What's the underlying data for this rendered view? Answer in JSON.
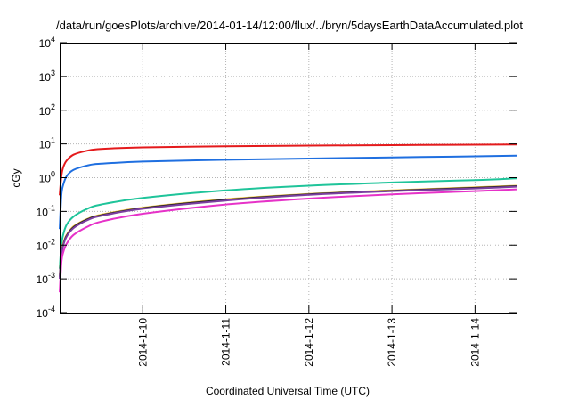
{
  "chart_data": {
    "type": "line",
    "title": "/data/run/goesPlots/archive/2014-01-14/12:00/flux/../bryn/5daysEarthDataAccumulated.plot",
    "xlabel": "Coordinated Universal Time (UTC)",
    "ylabel": "cGy",
    "y_scale": "log",
    "ylim_exponents": [
      -4,
      4
    ],
    "y_ticks": [
      {
        "base": "10",
        "exp": "-4"
      },
      {
        "base": "10",
        "exp": "-3"
      },
      {
        "base": "10",
        "exp": "-2"
      },
      {
        "base": "10",
        "exp": "-1"
      },
      {
        "base": "10",
        "exp": "0"
      },
      {
        "base": "10",
        "exp": "1"
      },
      {
        "base": "10",
        "exp": "2"
      },
      {
        "base": "10",
        "exp": "3"
      },
      {
        "base": "10",
        "exp": "4"
      }
    ],
    "x_start": "2014-01-09 00:00",
    "x_end": "2014-01-14 12:00",
    "x_ticks": [
      {
        "label": "2014-1-10",
        "date": "2014-01-10"
      },
      {
        "label": "2014-1-11",
        "date": "2014-01-11"
      },
      {
        "label": "2014-1-12",
        "date": "2014-01-12"
      },
      {
        "label": "2014-1-13",
        "date": "2014-01-13"
      },
      {
        "label": "2014-1-14",
        "date": "2014-01-14"
      }
    ],
    "grid": true,
    "legend": "none",
    "series": [
      {
        "color": "#e41a1c",
        "width": 2,
        "x": [
          "2014-01-09 00:00",
          "2014-01-09 00:30",
          "2014-01-09 01:00",
          "2014-01-09 02:00",
          "2014-01-09 04:00",
          "2014-01-09 08:00",
          "2014-01-09 12:00",
          "2014-01-10 00:00",
          "2014-01-11 00:00",
          "2014-01-12 00:00",
          "2014-01-13 00:00",
          "2014-01-14 00:00",
          "2014-01-14 12:00"
        ],
        "y": [
          0.3,
          1.1,
          2.0,
          3.2,
          4.8,
          6.3,
          7.1,
          7.9,
          8.5,
          8.9,
          9.2,
          9.5,
          9.6
        ]
      },
      {
        "color": "#1f6fe0",
        "width": 2,
        "x": [
          "2014-01-09 00:00",
          "2014-01-09 00:30",
          "2014-01-09 01:00",
          "2014-01-09 02:00",
          "2014-01-09 04:00",
          "2014-01-09 08:00",
          "2014-01-09 12:00",
          "2014-01-10 00:00",
          "2014-01-11 00:00",
          "2014-01-12 00:00",
          "2014-01-13 00:00",
          "2014-01-14 00:00",
          "2014-01-14 12:00"
        ],
        "y": [
          0.03,
          0.3,
          0.6,
          1.1,
          1.7,
          2.3,
          2.6,
          3.0,
          3.4,
          3.7,
          4.0,
          4.3,
          4.5
        ]
      },
      {
        "color": "#1fc49a",
        "width": 2,
        "x": [
          "2014-01-09 00:00",
          "2014-01-09 00:30",
          "2014-01-09 01:00",
          "2014-01-09 02:00",
          "2014-01-09 04:00",
          "2014-01-09 08:00",
          "2014-01-09 12:00",
          "2014-01-10 00:00",
          "2014-01-11 00:00",
          "2014-01-12 00:00",
          "2014-01-13 00:00",
          "2014-01-14 00:00",
          "2014-01-14 12:00"
        ],
        "y": [
          0.002,
          0.01,
          0.02,
          0.04,
          0.07,
          0.12,
          0.16,
          0.25,
          0.42,
          0.58,
          0.72,
          0.85,
          0.95
        ]
      },
      {
        "color": "#f7c948",
        "width": 2,
        "x": [
          "2014-01-09 00:00",
          "2014-01-09 00:30",
          "2014-01-09 01:00",
          "2014-01-09 02:00",
          "2014-01-09 04:00",
          "2014-01-09 08:00",
          "2014-01-09 12:00",
          "2014-01-10 00:00",
          "2014-01-11 00:00",
          "2014-01-12 00:00",
          "2014-01-13 00:00",
          "2014-01-14 00:00",
          "2014-01-14 12:00"
        ],
        "y": [
          0.0012,
          0.006,
          0.011,
          0.02,
          0.036,
          0.06,
          0.08,
          0.13,
          0.23,
          0.33,
          0.42,
          0.52,
          0.58
        ]
      },
      {
        "color": "#222222",
        "width": 2,
        "x": [
          "2014-01-09 00:00",
          "2014-01-09 00:30",
          "2014-01-09 01:00",
          "2014-01-09 02:00",
          "2014-01-09 04:00",
          "2014-01-09 08:00",
          "2014-01-09 12:00",
          "2014-01-10 00:00",
          "2014-01-11 00:00",
          "2014-01-12 00:00",
          "2014-01-13 00:00",
          "2014-01-14 00:00",
          "2014-01-14 12:00"
        ],
        "y": [
          0.0011,
          0.0055,
          0.01,
          0.019,
          0.034,
          0.058,
          0.077,
          0.125,
          0.22,
          0.32,
          0.41,
          0.5,
          0.56
        ]
      },
      {
        "color": "#7b3fa0",
        "width": 2,
        "x": [
          "2014-01-09 00:00",
          "2014-01-09 00:30",
          "2014-01-09 01:00",
          "2014-01-09 02:00",
          "2014-01-09 04:00",
          "2014-01-09 08:00",
          "2014-01-09 12:00",
          "2014-01-10 00:00",
          "2014-01-11 00:00",
          "2014-01-12 00:00",
          "2014-01-13 00:00",
          "2014-01-14 00:00",
          "2014-01-14 12:00"
        ],
        "y": [
          0.001,
          0.005,
          0.0095,
          0.018,
          0.032,
          0.055,
          0.074,
          0.12,
          0.21,
          0.31,
          0.4,
          0.48,
          0.54
        ]
      },
      {
        "color": "#e632c8",
        "width": 2,
        "x": [
          "2014-01-09 00:00",
          "2014-01-09 00:30",
          "2014-01-09 01:00",
          "2014-01-09 02:00",
          "2014-01-09 04:00",
          "2014-01-09 08:00",
          "2014-01-09 12:00",
          "2014-01-10 00:00",
          "2014-01-11 00:00",
          "2014-01-12 00:00",
          "2014-01-13 00:00",
          "2014-01-14 00:00",
          "2014-01-14 12:00"
        ],
        "y": [
          0.0004,
          0.003,
          0.006,
          0.011,
          0.02,
          0.035,
          0.05,
          0.085,
          0.16,
          0.24,
          0.32,
          0.4,
          0.45
        ]
      }
    ]
  }
}
